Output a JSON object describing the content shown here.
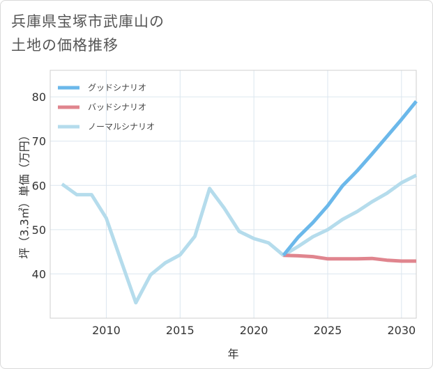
{
  "title_line1": "兵庫県宝塚市武庫山の",
  "title_line2": "土地の価格推移",
  "chart_data": {
    "type": "line",
    "xlabel": "年",
    "ylabel": "坪（3.3㎡）単価（万円）",
    "xlim": [
      2006.2,
      2031
    ],
    "ylim": [
      30,
      86
    ],
    "x_ticks": [
      2010,
      2015,
      2020,
      2025,
      2030
    ],
    "y_ticks": [
      40,
      50,
      60,
      70,
      80
    ],
    "grid": true,
    "legend_position": "top-left",
    "series": [
      {
        "name": "グッドシナリオ",
        "color": "#6bb8ea",
        "x": [
          2022,
          2023,
          2024,
          2025,
          2026,
          2027,
          2028,
          2029,
          2030,
          2031
        ],
        "y": [
          44.2,
          48.3,
          51.6,
          55.4,
          59.9,
          63.3,
          67.1,
          71.0,
          74.9,
          79.0
        ]
      },
      {
        "name": "バッドシナリオ",
        "color": "#e0858e",
        "x": [
          2022,
          2023,
          2024,
          2025,
          2026,
          2027,
          2028,
          2029,
          2030,
          2031
        ],
        "y": [
          44.2,
          44.1,
          43.9,
          43.4,
          43.4,
          43.4,
          43.5,
          43.1,
          42.9,
          42.9
        ]
      },
      {
        "name": "ノーマルシナリオ",
        "color": "#b5dcec",
        "x": [
          2007,
          2008,
          2009,
          2010,
          2011,
          2012,
          2013,
          2014,
          2015,
          2016,
          2017,
          2018,
          2019,
          2020,
          2021,
          2022,
          2023,
          2024,
          2025,
          2026,
          2027,
          2028,
          2029,
          2030,
          2031
        ],
        "y": [
          60.3,
          57.9,
          57.9,
          52.6,
          43.0,
          33.5,
          39.8,
          42.5,
          44.3,
          48.5,
          59.3,
          54.8,
          49.6,
          48.0,
          47.0,
          44.2,
          46.2,
          48.4,
          50.0,
          52.3,
          54.1,
          56.3,
          58.2,
          60.6,
          62.3
        ]
      }
    ]
  }
}
